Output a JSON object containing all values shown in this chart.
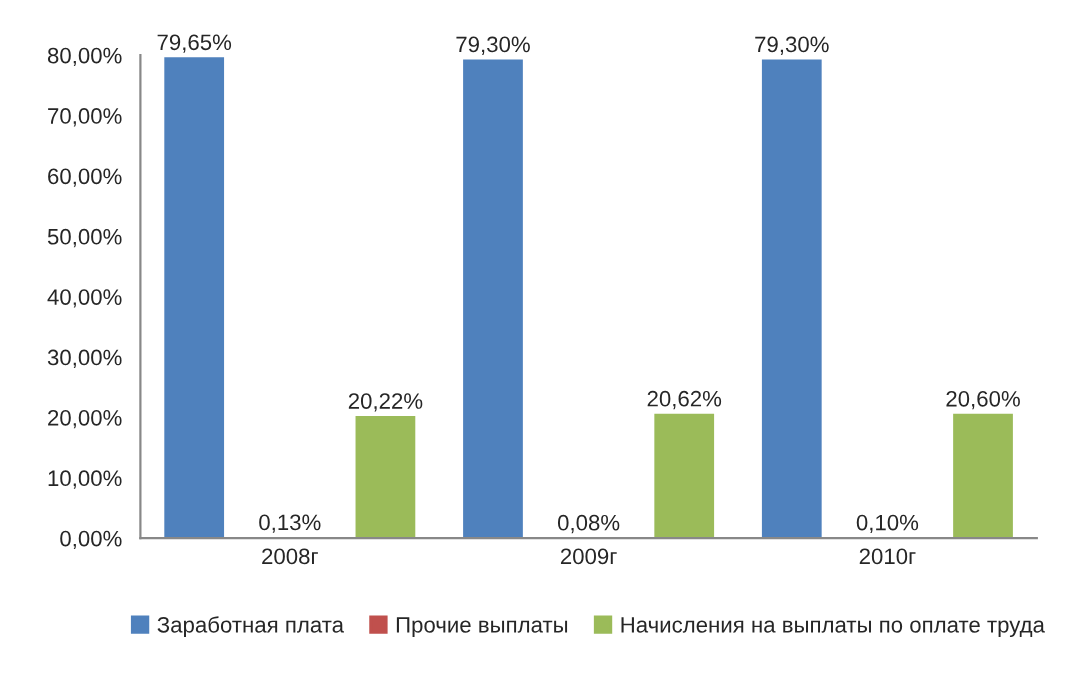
{
  "chart_data": {
    "type": "bar",
    "categories": [
      "2008г",
      "2009г",
      "2010г"
    ],
    "series": [
      {
        "name": "Заработная плата",
        "color": "#4f81bd",
        "values": [
          79.65,
          79.3,
          79.3
        ],
        "value_labels": [
          "79,65%",
          "79,30%",
          "79,30%"
        ]
      },
      {
        "name": "Прочие выплаты",
        "color": "#c0504d",
        "values": [
          0.13,
          0.08,
          0.1
        ],
        "value_labels": [
          "0,13%",
          "0,08%",
          "0,10%"
        ]
      },
      {
        "name": "Начисления на выплаты по оплате труда",
        "color": "#9bbb59",
        "values": [
          20.22,
          20.62,
          20.6
        ],
        "value_labels": [
          "20,22%",
          "20,62%",
          "20,60%"
        ]
      }
    ],
    "ylim": [
      0,
      80
    ],
    "yticks": [
      {
        "value": 0,
        "label": "0,00%"
      },
      {
        "value": 10,
        "label": "10,00%"
      },
      {
        "value": 20,
        "label": "20,00%"
      },
      {
        "value": 30,
        "label": "30,00%"
      },
      {
        "value": 40,
        "label": "40,00%"
      },
      {
        "value": 50,
        "label": "50,00%"
      },
      {
        "value": 60,
        "label": "60,00%"
      },
      {
        "value": 70,
        "label": "70,00%"
      },
      {
        "value": 80,
        "label": "80,00%"
      }
    ],
    "grid": false,
    "legend": "bottom"
  }
}
